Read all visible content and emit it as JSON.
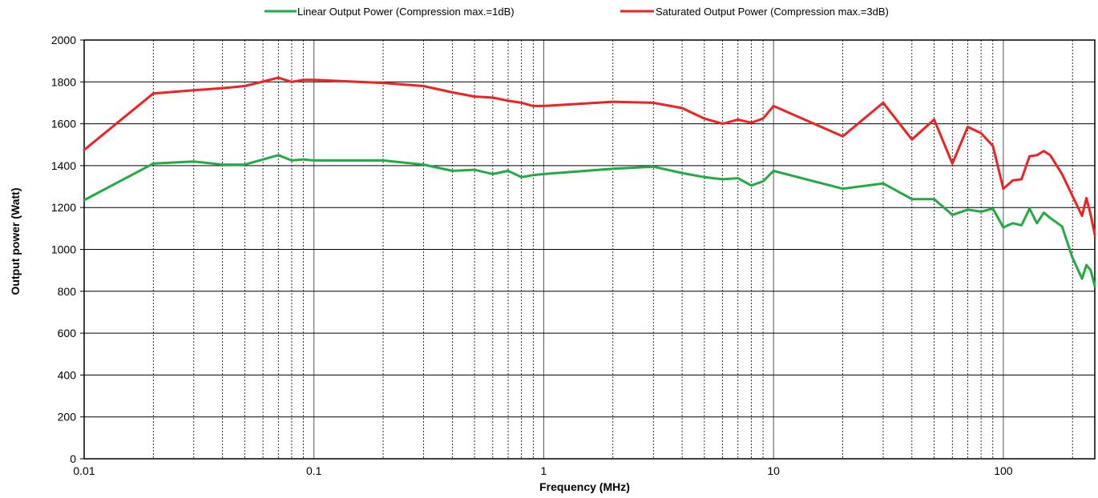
{
  "chart_data": {
    "type": "line",
    "xlabel": "Frequency (MHz)",
    "ylabel": "Output power (Watt)",
    "x_scale": "log",
    "xlim": [
      0.01,
      250
    ],
    "ylim": [
      0,
      2000
    ],
    "x_ticks": [
      0.01,
      0.1,
      1,
      10,
      100
    ],
    "x_tick_labels": [
      "0.01",
      "0.1",
      "1",
      "10",
      "100"
    ],
    "y_ticks": [
      0,
      200,
      400,
      600,
      800,
      1000,
      1200,
      1400,
      1600,
      1800,
      2000
    ],
    "y_tick_labels": [
      "0",
      "200",
      "400",
      "600",
      "800",
      "1000",
      "1200",
      "1400",
      "1600",
      "1800",
      "2000"
    ],
    "grid": true,
    "legend_position": "top",
    "series": [
      {
        "name": "Linear Output Power (Compression max.=1dB)",
        "color": "#22aa44",
        "x": [
          0.01,
          0.02,
          0.03,
          0.04,
          0.05,
          0.07,
          0.08,
          0.09,
          0.1,
          0.2,
          0.3,
          0.4,
          0.5,
          0.6,
          0.7,
          0.8,
          0.9,
          1,
          2,
          3,
          4,
          5,
          6,
          7,
          8,
          9,
          10,
          20,
          30,
          40,
          50,
          60,
          70,
          80,
          90,
          100,
          110,
          120,
          130,
          140,
          150,
          160,
          180,
          200,
          220,
          230,
          240,
          250
        ],
        "y": [
          1235,
          1410,
          1420,
          1405,
          1405,
          1450,
          1425,
          1430,
          1425,
          1425,
          1405,
          1375,
          1380,
          1360,
          1375,
          1345,
          1355,
          1360,
          1385,
          1395,
          1365,
          1345,
          1335,
          1340,
          1305,
          1325,
          1375,
          1290,
          1315,
          1240,
          1240,
          1165,
          1190,
          1180,
          1195,
          1105,
          1125,
          1115,
          1195,
          1125,
          1175,
          1150,
          1110,
          960,
          860,
          925,
          900,
          825
        ]
      },
      {
        "name": "Saturated Output Power (Compression max.=3dB)",
        "color": "#ee2222",
        "x": [
          0.01,
          0.02,
          0.03,
          0.04,
          0.05,
          0.07,
          0.08,
          0.09,
          0.1,
          0.2,
          0.3,
          0.4,
          0.5,
          0.6,
          0.7,
          0.8,
          0.9,
          1,
          2,
          3,
          4,
          5,
          6,
          7,
          8,
          9,
          10,
          20,
          30,
          40,
          50,
          60,
          70,
          80,
          90,
          100,
          110,
          120,
          130,
          140,
          150,
          160,
          180,
          200,
          220,
          230,
          240,
          250
        ],
        "y": [
          1475,
          1745,
          1760,
          1770,
          1780,
          1820,
          1800,
          1810,
          1810,
          1795,
          1780,
          1750,
          1730,
          1725,
          1710,
          1700,
          1685,
          1685,
          1705,
          1700,
          1675,
          1625,
          1600,
          1620,
          1605,
          1625,
          1685,
          1540,
          1700,
          1525,
          1620,
          1410,
          1585,
          1555,
          1495,
          1290,
          1330,
          1335,
          1445,
          1450,
          1470,
          1450,
          1360,
          1255,
          1160,
          1245,
          1165,
          1070
        ]
      }
    ]
  }
}
